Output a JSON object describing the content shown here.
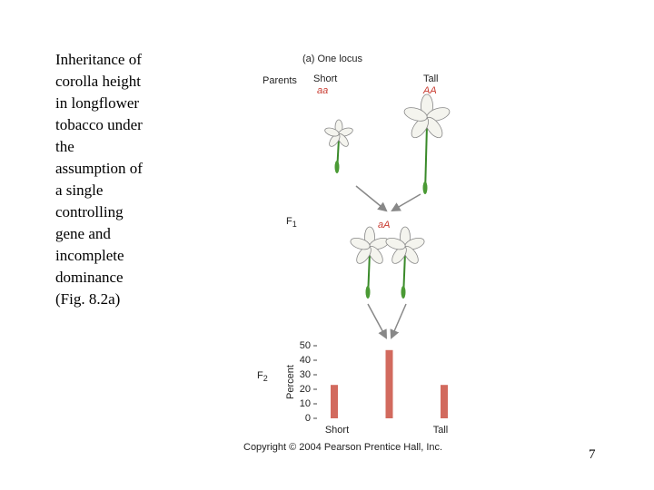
{
  "slide": {
    "text": "Inheritance of corolla height in longflower tobacco under the assumption of a single controlling gene and incomplete dominance (Fig. 8.2a)",
    "page_number": 7
  },
  "figure": {
    "title": "(a) One locus",
    "parents_label": "Parents",
    "short_label": "Short",
    "short_genotype": "aa",
    "tall_label": "Tall",
    "tall_genotype": "AA",
    "f1_label": {
      "base": "F",
      "sub": "1"
    },
    "f1_genotype": "aA",
    "f2_label": {
      "base": "F",
      "sub": "2"
    },
    "copyright": "Copyright © 2004 Pearson Prentice Hall, Inc."
  },
  "chart_data": {
    "type": "bar",
    "ylabel": "Percent",
    "categories": [
      "Short",
      null,
      "Tall"
    ],
    "values": [
      23,
      47,
      23
    ],
    "color": "#d26a5e",
    "ylim": [
      0,
      50
    ],
    "yticks": [
      0,
      10,
      20,
      30,
      40,
      50
    ]
  }
}
